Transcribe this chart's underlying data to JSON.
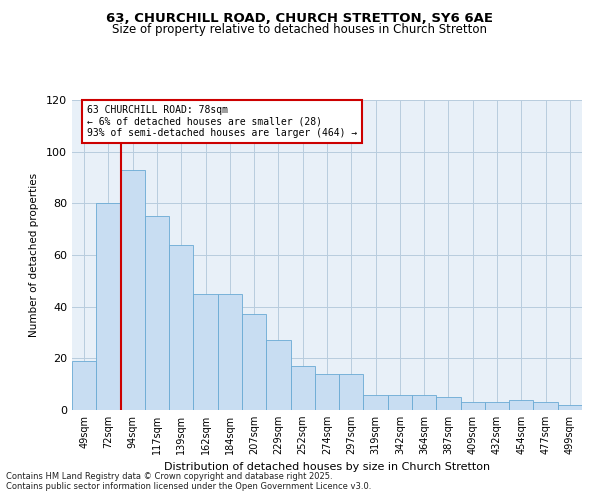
{
  "title": "63, CHURCHILL ROAD, CHURCH STRETTON, SY6 6AE",
  "subtitle": "Size of property relative to detached houses in Church Stretton",
  "xlabel": "Distribution of detached houses by size in Church Stretton",
  "ylabel": "Number of detached properties",
  "bar_color": "#c8ddf2",
  "bar_edge_color": "#6aaad4",
  "grid_color": "#b8ccde",
  "bg_color": "#e8f0f8",
  "vline_color": "#cc0000",
  "categories": [
    "49sqm",
    "72sqm",
    "94sqm",
    "117sqm",
    "139sqm",
    "162sqm",
    "184sqm",
    "207sqm",
    "229sqm",
    "252sqm",
    "274sqm",
    "297sqm",
    "319sqm",
    "342sqm",
    "364sqm",
    "387sqm",
    "409sqm",
    "432sqm",
    "454sqm",
    "477sqm",
    "499sqm"
  ],
  "bar_heights": [
    19,
    80,
    93,
    75,
    64,
    45,
    45,
    37,
    27,
    17,
    14,
    14,
    6,
    6,
    6,
    5,
    3,
    3,
    4,
    3,
    2
  ],
  "ylim": [
    0,
    120
  ],
  "yticks": [
    0,
    20,
    40,
    60,
    80,
    100,
    120
  ],
  "annotation_text": "63 CHURCHILL ROAD: 78sqm\n← 6% of detached houses are smaller (28)\n93% of semi-detached houses are larger (464) →",
  "footnote1": "Contains HM Land Registry data © Crown copyright and database right 2025.",
  "footnote2": "Contains public sector information licensed under the Open Government Licence v3.0."
}
